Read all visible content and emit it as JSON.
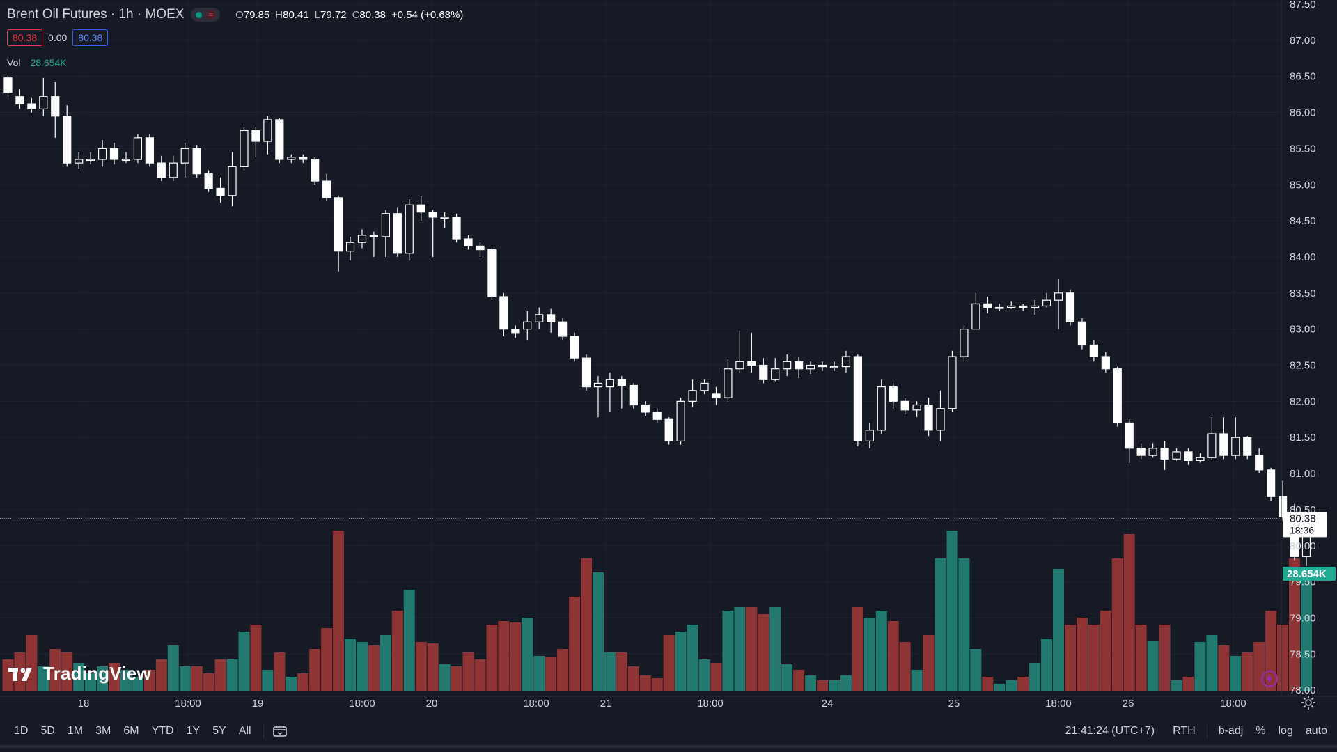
{
  "legend": {
    "title": "Brent Oil Futures · 1h · MOEX",
    "ohlc": [
      {
        "k": "O",
        "v": "79.85"
      },
      {
        "k": "H",
        "v": "80.41"
      },
      {
        "k": "L",
        "v": "79.72"
      },
      {
        "k": "C",
        "v": "80.38"
      },
      {
        "k": "",
        "v": "+0.54 (+0.68%)"
      }
    ],
    "bid": "80.38",
    "spread": "0.00",
    "ask": "80.38",
    "vol_label": "Vol",
    "vol_value": "28.654K"
  },
  "watermark": "TradingView",
  "bottom": {
    "timeframes": [
      "1D",
      "5D",
      "1M",
      "3M",
      "6M",
      "YTD",
      "1Y",
      "5Y",
      "All"
    ],
    "clock": "21:41:24 (UTC+7)",
    "rth": "RTH",
    "badj": "b-adj",
    "percent": "%",
    "log": "log",
    "auto": "auto"
  },
  "colors": {
    "background": "#161a25",
    "grid": "#1f2330",
    "candle": "#ffffff",
    "vol_up": "#22796f",
    "vol_down": "#8f3434",
    "vol_badge": "#22ab94",
    "text": "#d1d4dc"
  },
  "chart_data": {
    "type": "candlestick",
    "ylim": [
      77.5,
      87.5
    ],
    "price_ticks": [
      "87.50",
      "87.00",
      "86.50",
      "86.00",
      "85.50",
      "85.00",
      "84.50",
      "84.00",
      "83.50",
      "83.00",
      "82.50",
      "82.00",
      "81.50",
      "81.00",
      "80.50",
      "80.00",
      "79.50",
      "79.00",
      "78.50",
      "78.00"
    ],
    "x_ticks": [
      "18",
      "18:00",
      "19",
      "18:00",
      "20",
      "18:00",
      "21",
      "18:00",
      "24",
      "25",
      "18:00",
      "26",
      "18:00"
    ],
    "current_price": "80.38",
    "countdown": "18:36",
    "volume_badge": "28.654K",
    "candles": [
      [
        86.48,
        86.28,
        86.52,
        86.22,
        45
      ],
      [
        86.22,
        86.12,
        86.32,
        86.05,
        55
      ],
      [
        86.12,
        86.05,
        86.2,
        86.0,
        80
      ],
      [
        86.05,
        86.22,
        86.48,
        85.95,
        35
      ],
      [
        86.22,
        85.95,
        86.42,
        85.65,
        60
      ],
      [
        85.95,
        85.3,
        86.1,
        85.25,
        55
      ],
      [
        85.3,
        85.35,
        85.45,
        85.22,
        40
      ],
      [
        85.35,
        85.35,
        85.45,
        85.28,
        25
      ],
      [
        85.35,
        85.5,
        85.62,
        85.25,
        35
      ],
      [
        85.5,
        85.35,
        85.58,
        85.28,
        40
      ],
      [
        85.35,
        85.35,
        85.45,
        85.3,
        30
      ],
      [
        85.35,
        85.65,
        85.7,
        85.3,
        20
      ],
      [
        85.65,
        85.3,
        85.7,
        85.25,
        30
      ],
      [
        85.3,
        85.1,
        85.4,
        85.05,
        45
      ],
      [
        85.1,
        85.3,
        85.4,
        85.05,
        65
      ],
      [
        85.3,
        85.5,
        85.58,
        85.1,
        35
      ],
      [
        85.5,
        85.15,
        85.55,
        85.1,
        35
      ],
      [
        85.15,
        84.95,
        85.2,
        84.9,
        25
      ],
      [
        84.95,
        84.85,
        85.1,
        84.75,
        45
      ],
      [
        84.85,
        85.25,
        85.45,
        84.7,
        45
      ],
      [
        85.25,
        85.75,
        85.8,
        85.2,
        85
      ],
      [
        85.75,
        85.6,
        85.8,
        85.38,
        95
      ],
      [
        85.6,
        85.9,
        85.95,
        85.42,
        30
      ],
      [
        85.9,
        85.35,
        85.92,
        85.3,
        55
      ],
      [
        85.35,
        85.38,
        85.42,
        85.3,
        20
      ],
      [
        85.38,
        85.35,
        85.42,
        85.3,
        25
      ],
      [
        85.35,
        85.05,
        85.38,
        85.0,
        60
      ],
      [
        85.05,
        84.82,
        85.15,
        84.78,
        90
      ],
      [
        84.82,
        84.08,
        84.85,
        83.8,
        230
      ],
      [
        84.08,
        84.2,
        84.28,
        83.95,
        75
      ],
      [
        84.2,
        84.3,
        84.38,
        84.12,
        70
      ],
      [
        84.3,
        84.28,
        84.35,
        84.0,
        65
      ],
      [
        84.28,
        84.6,
        84.65,
        84.0,
        80
      ],
      [
        84.6,
        84.05,
        84.68,
        84.0,
        115
      ],
      [
        84.05,
        84.72,
        84.8,
        83.95,
        145
      ],
      [
        84.72,
        84.62,
        84.85,
        84.5,
        70
      ],
      [
        84.62,
        84.55,
        84.65,
        84.0,
        68
      ],
      [
        84.55,
        84.55,
        84.62,
        84.4,
        38
      ],
      [
        84.55,
        84.25,
        84.6,
        84.2,
        35
      ],
      [
        84.25,
        84.15,
        84.3,
        84.1,
        55
      ],
      [
        84.15,
        84.1,
        84.2,
        84.0,
        45
      ],
      [
        84.1,
        83.45,
        84.12,
        83.4,
        95
      ],
      [
        83.45,
        83.0,
        83.5,
        82.9,
        100
      ],
      [
        83.0,
        82.95,
        83.05,
        82.88,
        98
      ],
      [
        83.0,
        83.1,
        83.25,
        82.85,
        105
      ],
      [
        83.1,
        83.2,
        83.3,
        83.0,
        50
      ],
      [
        83.2,
        83.1,
        83.28,
        82.95,
        48
      ],
      [
        83.1,
        82.9,
        83.15,
        82.85,
        60
      ],
      [
        82.9,
        82.6,
        82.95,
        82.55,
        135
      ],
      [
        82.6,
        82.2,
        82.65,
        82.15,
        190
      ],
      [
        82.2,
        82.25,
        82.35,
        81.78,
        170
      ],
      [
        82.2,
        82.3,
        82.4,
        81.85,
        55
      ],
      [
        82.3,
        82.22,
        82.35,
        81.9,
        55
      ],
      [
        82.22,
        81.95,
        82.25,
        81.9,
        35
      ],
      [
        81.95,
        81.85,
        82.0,
        81.8,
        22
      ],
      [
        81.85,
        81.75,
        81.9,
        81.7,
        18
      ],
      [
        81.75,
        81.45,
        81.78,
        81.4,
        80
      ],
      [
        81.45,
        82.0,
        82.05,
        81.4,
        85
      ],
      [
        82.0,
        82.15,
        82.3,
        81.92,
        95
      ],
      [
        82.15,
        82.25,
        82.3,
        82.1,
        45
      ],
      [
        82.1,
        82.05,
        82.2,
        81.95,
        40
      ],
      [
        82.05,
        82.45,
        82.58,
        82.0,
        115
      ],
      [
        82.45,
        82.55,
        82.98,
        82.4,
        120
      ],
      [
        82.55,
        82.5,
        82.95,
        82.4,
        120
      ],
      [
        82.5,
        82.3,
        82.6,
        82.25,
        110
      ],
      [
        82.3,
        82.45,
        82.6,
        82.28,
        120
      ],
      [
        82.45,
        82.55,
        82.65,
        82.35,
        38
      ],
      [
        82.55,
        82.45,
        82.62,
        82.32,
        30
      ],
      [
        82.45,
        82.5,
        82.55,
        82.38,
        22
      ],
      [
        82.5,
        82.48,
        82.55,
        82.42,
        15
      ],
      [
        82.48,
        82.48,
        82.55,
        82.42,
        15
      ],
      [
        82.48,
        82.62,
        82.7,
        82.4,
        22
      ],
      [
        82.62,
        81.45,
        82.65,
        81.38,
        120
      ],
      [
        81.45,
        81.6,
        81.7,
        81.35,
        105
      ],
      [
        81.6,
        82.2,
        82.3,
        81.55,
        115
      ],
      [
        82.2,
        82.0,
        82.25,
        81.9,
        100
      ],
      [
        82.0,
        81.88,
        82.05,
        81.82,
        70
      ],
      [
        81.88,
        81.95,
        82.0,
        81.78,
        30
      ],
      [
        81.95,
        81.6,
        82.05,
        81.52,
        80
      ],
      [
        81.6,
        81.9,
        82.15,
        81.45,
        190
      ],
      [
        81.9,
        82.62,
        82.7,
        81.85,
        230
      ],
      [
        82.62,
        83.0,
        83.05,
        82.55,
        190
      ],
      [
        83.0,
        83.35,
        83.5,
        83.2,
        60
      ],
      [
        83.35,
        83.3,
        83.45,
        83.22,
        20
      ],
      [
        83.3,
        83.3,
        83.35,
        83.25,
        10
      ],
      [
        83.3,
        83.32,
        83.38,
        83.28,
        15
      ],
      [
        83.32,
        83.3,
        83.35,
        83.25,
        20
      ],
      [
        83.3,
        83.32,
        83.4,
        83.2,
        40
      ],
      [
        83.32,
        83.4,
        83.5,
        83.3,
        75
      ],
      [
        83.4,
        83.5,
        83.7,
        83.0,
        175
      ],
      [
        83.5,
        83.1,
        83.55,
        83.05,
        95
      ],
      [
        83.1,
        82.78,
        83.15,
        82.72,
        105
      ],
      [
        82.78,
        82.62,
        82.85,
        82.55,
        95
      ],
      [
        82.62,
        82.45,
        82.68,
        82.4,
        115
      ],
      [
        82.45,
        81.7,
        82.48,
        81.65,
        190
      ],
      [
        81.7,
        81.35,
        81.75,
        81.15,
        225
      ],
      [
        81.35,
        81.25,
        81.42,
        81.2,
        95
      ],
      [
        81.25,
        81.35,
        81.42,
        81.22,
        72
      ],
      [
        81.35,
        81.2,
        81.45,
        81.05,
        95
      ],
      [
        81.2,
        81.3,
        81.35,
        81.18,
        15
      ],
      [
        81.3,
        81.18,
        81.35,
        81.12,
        20
      ],
      [
        81.18,
        81.22,
        81.28,
        81.15,
        70
      ],
      [
        81.22,
        81.55,
        81.78,
        81.18,
        80
      ],
      [
        81.55,
        81.25,
        81.78,
        81.2,
        65
      ],
      [
        81.25,
        81.5,
        81.78,
        81.2,
        50
      ],
      [
        81.5,
        81.25,
        81.52,
        81.2,
        55
      ],
      [
        81.25,
        81.05,
        81.35,
        81.0,
        70
      ],
      [
        81.05,
        80.68,
        81.08,
        80.62,
        115
      ],
      [
        80.68,
        80.4,
        80.9,
        80.35,
        95
      ],
      [
        80.4,
        79.85,
        80.58,
        79.8,
        190
      ],
      [
        79.85,
        80.38,
        80.41,
        79.72,
        168
      ]
    ]
  }
}
